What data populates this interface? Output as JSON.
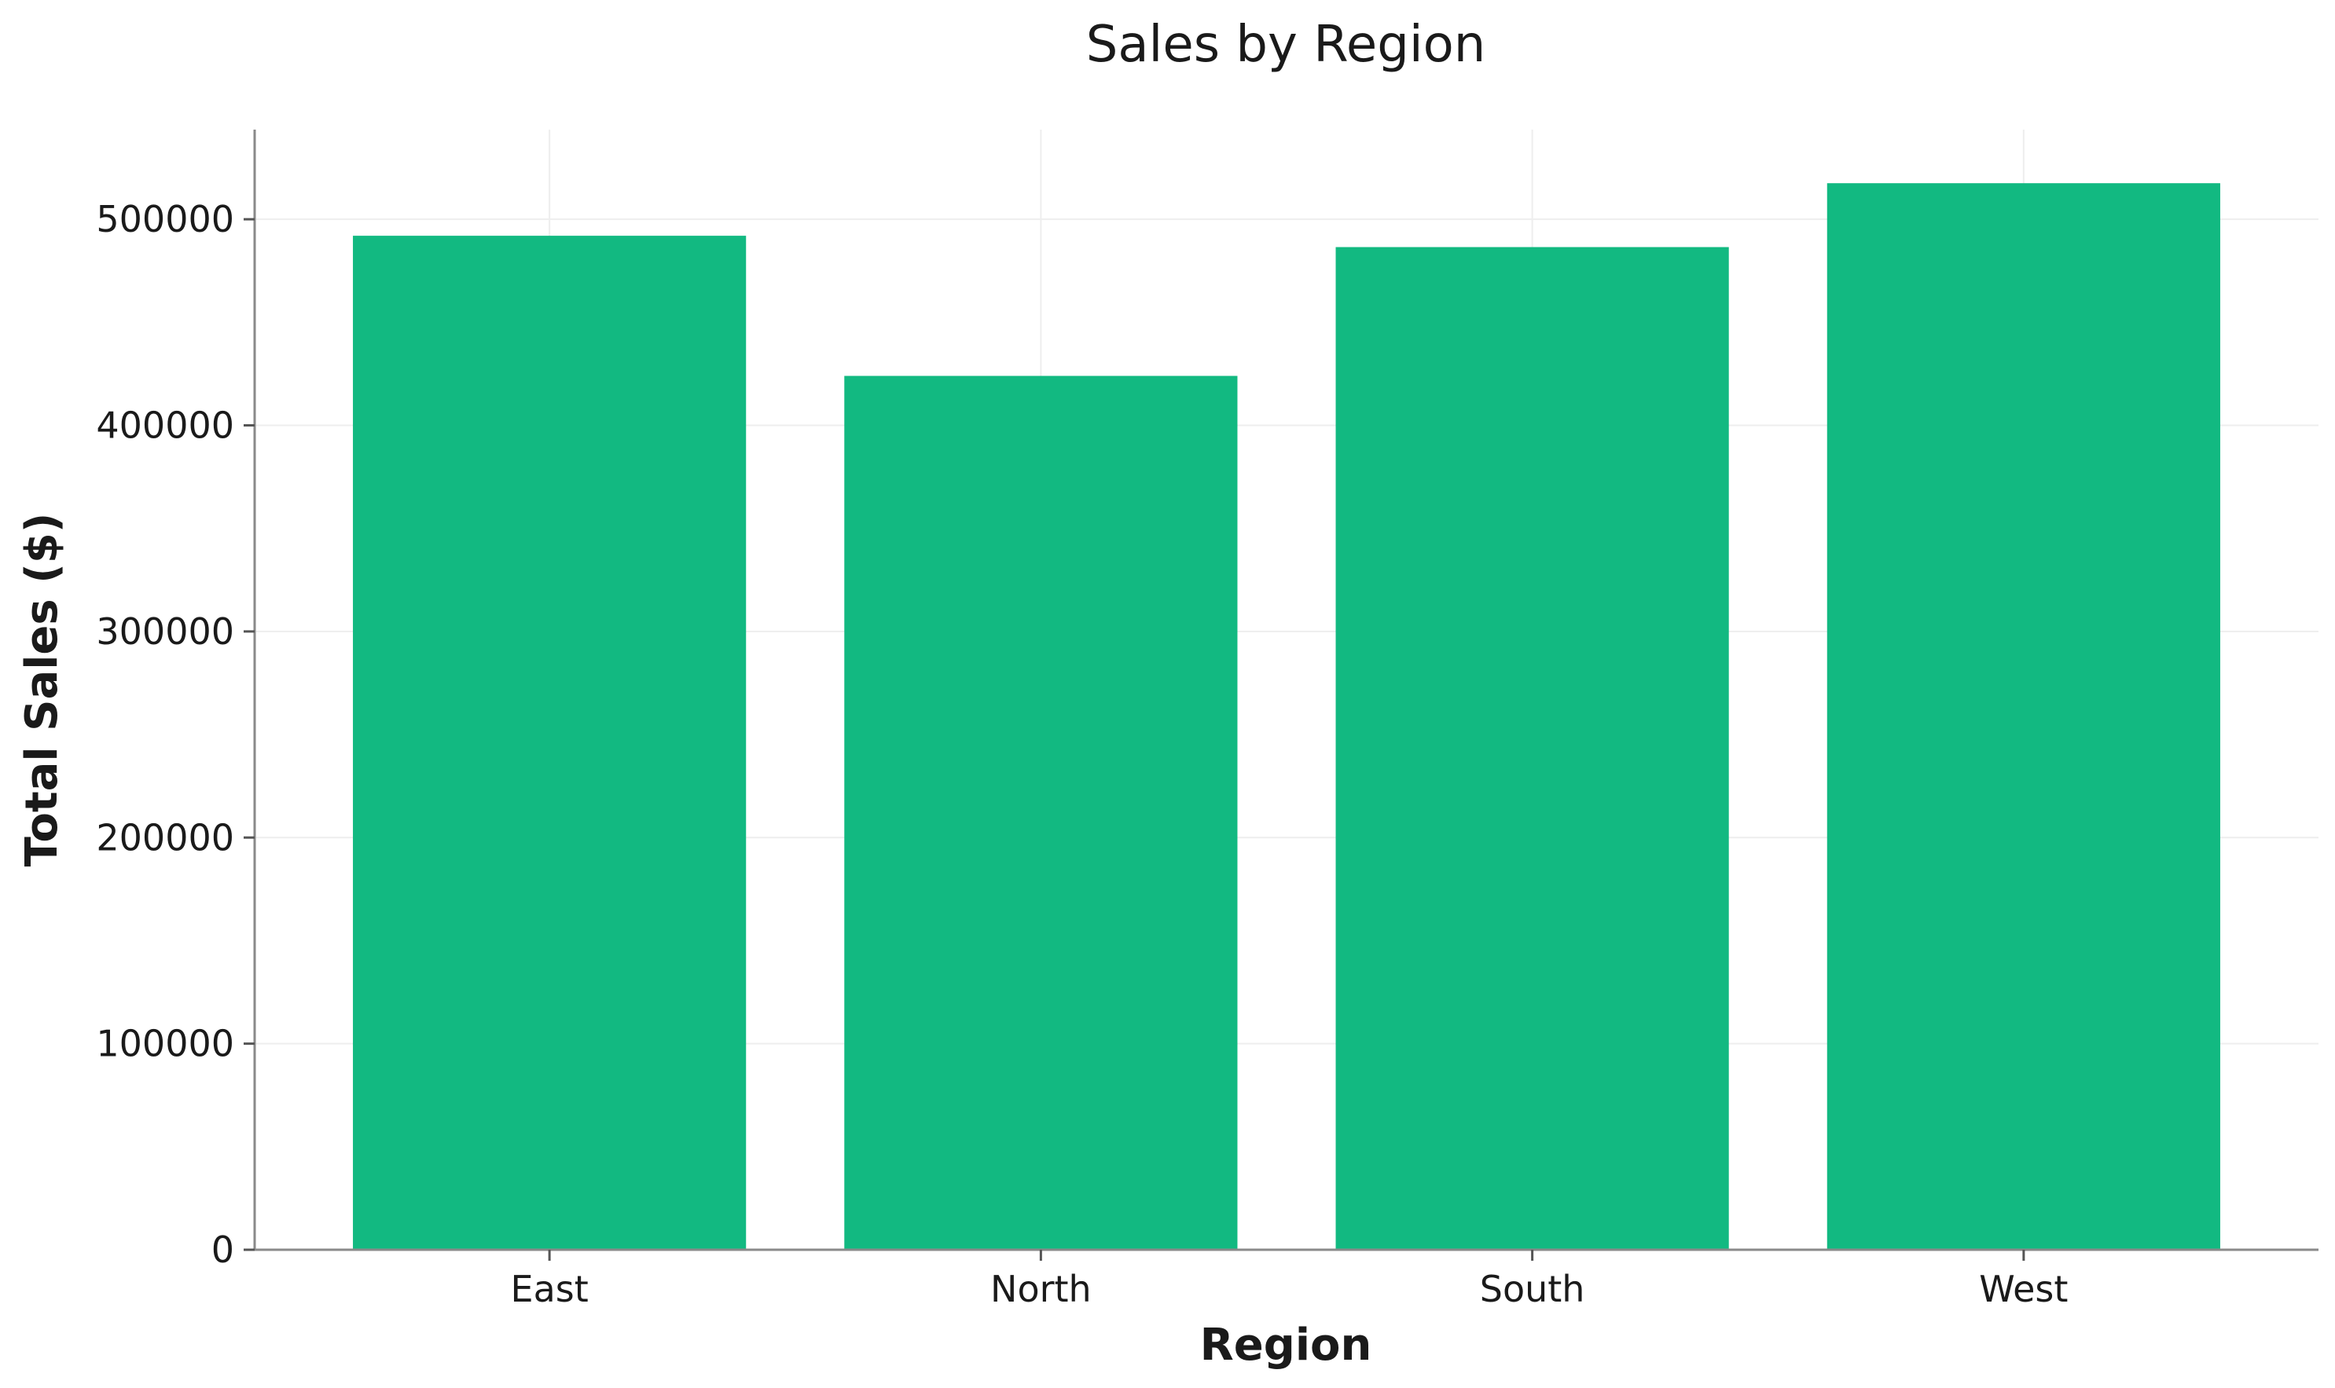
{
  "chart_data": {
    "type": "bar",
    "title": "Sales by Region",
    "xlabel": "Region",
    "ylabel": "Total Sales ($)",
    "categories": [
      "East",
      "North",
      "South",
      "West"
    ],
    "values": [
      492000,
      424000,
      486500,
      517500
    ],
    "ylim": [
      0,
      543500
    ],
    "yticks": [
      0,
      100000,
      200000,
      300000,
      400000,
      500000
    ],
    "ytick_labels": [
      "0",
      "100000",
      "200000",
      "300000",
      "400000",
      "500000"
    ],
    "grid": true,
    "bar_color": "#12b981"
  }
}
